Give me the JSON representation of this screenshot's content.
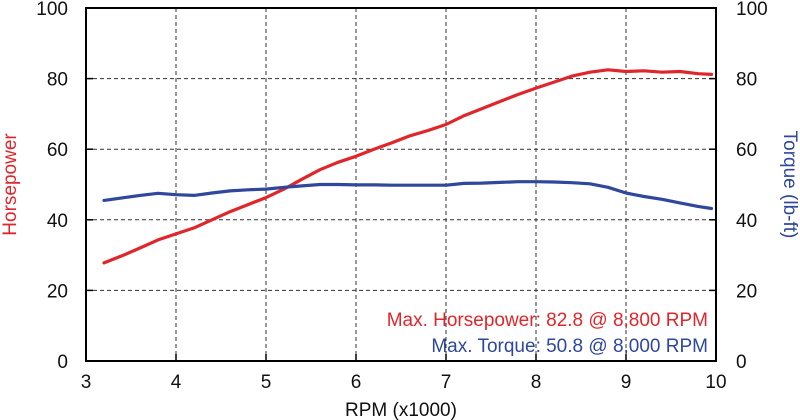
{
  "chart_data": {
    "type": "line",
    "x": [
      3.2,
      3.4,
      3.6,
      3.8,
      4.0,
      4.2,
      4.4,
      4.6,
      4.8,
      5.0,
      5.2,
      5.4,
      5.6,
      5.8,
      6.0,
      6.2,
      6.4,
      6.6,
      6.8,
      7.0,
      7.2,
      7.4,
      7.6,
      7.8,
      8.0,
      8.2,
      8.4,
      8.6,
      8.8,
      9.0,
      9.2,
      9.4,
      9.6,
      9.8,
      9.95
    ],
    "series": [
      {
        "name": "Horsepower",
        "axis": "left",
        "color": "#e0262b",
        "values": [
          27.8,
          29.8,
          32.0,
          34.3,
          36.0,
          37.7,
          40.0,
          42.3,
          44.3,
          46.3,
          48.7,
          51.5,
          54.2,
          56.3,
          58.0,
          60.0,
          61.8,
          63.8,
          65.3,
          67.0,
          69.5,
          71.5,
          73.5,
          75.5,
          77.3,
          79.0,
          80.7,
          81.8,
          82.5,
          82.0,
          82.2,
          81.8,
          82.0,
          81.4,
          81.2
        ]
      },
      {
        "name": "Torque",
        "axis": "right",
        "color": "#2f479c",
        "values": [
          45.5,
          46.2,
          46.9,
          47.5,
          47.1,
          46.9,
          47.6,
          48.2,
          48.5,
          48.7,
          49.2,
          49.6,
          50.0,
          50.0,
          49.9,
          49.9,
          49.8,
          49.8,
          49.8,
          49.8,
          50.3,
          50.4,
          50.6,
          50.8,
          50.8,
          50.7,
          50.5,
          50.2,
          49.2,
          47.6,
          46.6,
          45.8,
          44.8,
          43.8,
          43.2
        ]
      }
    ],
    "xlabel": "RPM (x1000)",
    "ylabel_left": "Horsepower",
    "ylabel_right": "Torque (lb-ft)",
    "xlim": [
      3,
      10
    ],
    "ylim": [
      0,
      100
    ],
    "xticks": [
      "3",
      "4",
      "5",
      "6",
      "7",
      "8",
      "9",
      "10"
    ],
    "yticks": [
      "0",
      "20",
      "40",
      "60",
      "80",
      "100"
    ],
    "grid": true,
    "annotations": [
      {
        "text": "Max. Horsepower: 82.8 @ 8,800 RPM",
        "color": "#e0262b"
      },
      {
        "text": "Max. Torque: 50.8 @ 8,000 RPM",
        "color": "#2f479c"
      }
    ],
    "colors": {
      "left_axis_title": "#e0262b",
      "right_axis_title": "#2f479c",
      "axis": "#000000",
      "grid": "#333333"
    }
  }
}
